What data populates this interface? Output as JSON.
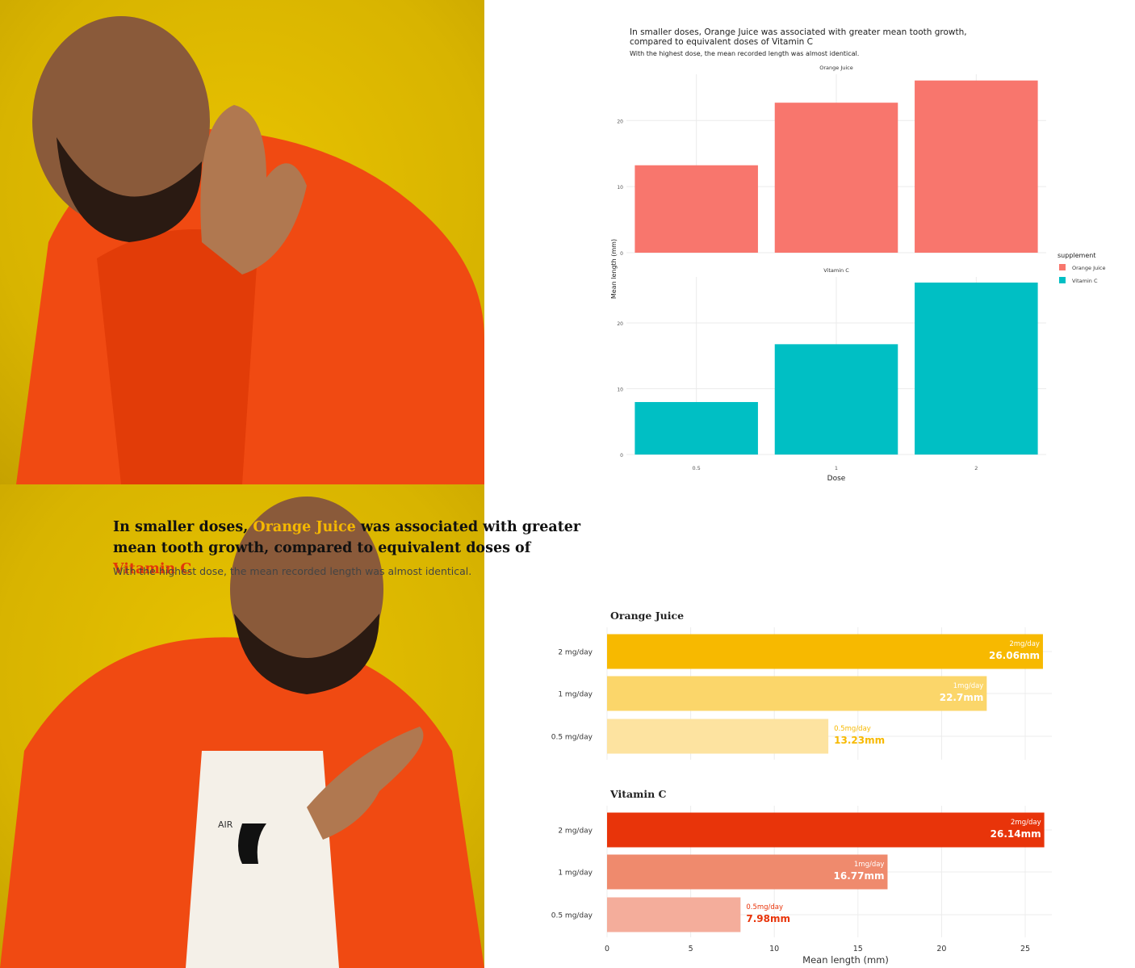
{
  "meme": {
    "top_icon": "rejecting-hand-person-figure",
    "bottom_icon": "approving-pointing-person-figure",
    "shirt_logo_text": "AIR"
  },
  "top_chart": {
    "title": "In smaller doses, Orange Juice was associated with greater mean tooth growth, compared to equivalent doses of Vitamin C",
    "subtitle": "With the highest dose, the mean recorded length was almost identical.",
    "legend_title": "supplement",
    "legend_items": [
      "Orange Juice",
      "Vitamin C"
    ],
    "colors": {
      "oj": "#f8766d",
      "vc": "#00bfc4"
    }
  },
  "bottom_chart": {
    "title_parts": [
      "In smaller doses, ",
      "Orange Juice",
      " was associated with greater mean tooth growth, compared to equivalent doses of ",
      "Vitamin C"
    ],
    "subtitle": "With the highest dose, the mean recorded length was almost identical.",
    "colors": {
      "oj": [
        "#fde3a0",
        "#fbd66a",
        "#f7b900"
      ],
      "vc": [
        "#f4ad9b",
        "#ef8a6d",
        "#e8340a"
      ]
    }
  },
  "chart_data": [
    {
      "type": "bar",
      "title": "In smaller doses, Orange Juice was associated with greater mean tooth growth, compared to equivalent doses of Vitamin C",
      "subtitle": "With the highest dose, the mean recorded length was almost identical.",
      "xlabel": "Dose",
      "ylabel": "Mean length (mm)",
      "categories": [
        "0.5",
        "1",
        "2"
      ],
      "ylim": [
        0,
        27
      ],
      "yticks": [
        0,
        10,
        20
      ],
      "grid": true,
      "legend_placement": "right",
      "facets": [
        {
          "name": "Orange Juice",
          "values": [
            13.23,
            22.7,
            26.06
          ]
        },
        {
          "name": "Vitamin C",
          "values": [
            7.98,
            16.77,
            26.14
          ]
        }
      ]
    },
    {
      "type": "bar",
      "orientation": "horizontal",
      "title": "In smaller doses, Orange Juice was associated with greater mean tooth growth, compared to equivalent doses of Vitamin C",
      "subtitle": "With the highest dose, the mean recorded length was almost identical.",
      "xlabel": "Mean length (mm)",
      "categories": [
        "2 mg/day",
        "1 mg/day",
        "0.5 mg/day"
      ],
      "xlim": [
        0,
        26.5
      ],
      "xticks": [
        0,
        5,
        10,
        15,
        20,
        25
      ],
      "grid": true,
      "facets": [
        {
          "name": "Orange Juice",
          "values": [
            26.06,
            22.7,
            13.23
          ],
          "dose_labels": [
            "2mg/day",
            "1mg/day",
            "0.5mg/day"
          ],
          "value_labels": [
            "26.06mm",
            "22.7mm",
            "13.23mm"
          ]
        },
        {
          "name": "Vitamin C",
          "values": [
            26.14,
            16.77,
            7.98
          ],
          "dose_labels": [
            "2mg/day",
            "1mg/day",
            "0.5mg/day"
          ],
          "value_labels": [
            "26.14mm",
            "16.77mm",
            "7.98mm"
          ]
        }
      ]
    }
  ]
}
